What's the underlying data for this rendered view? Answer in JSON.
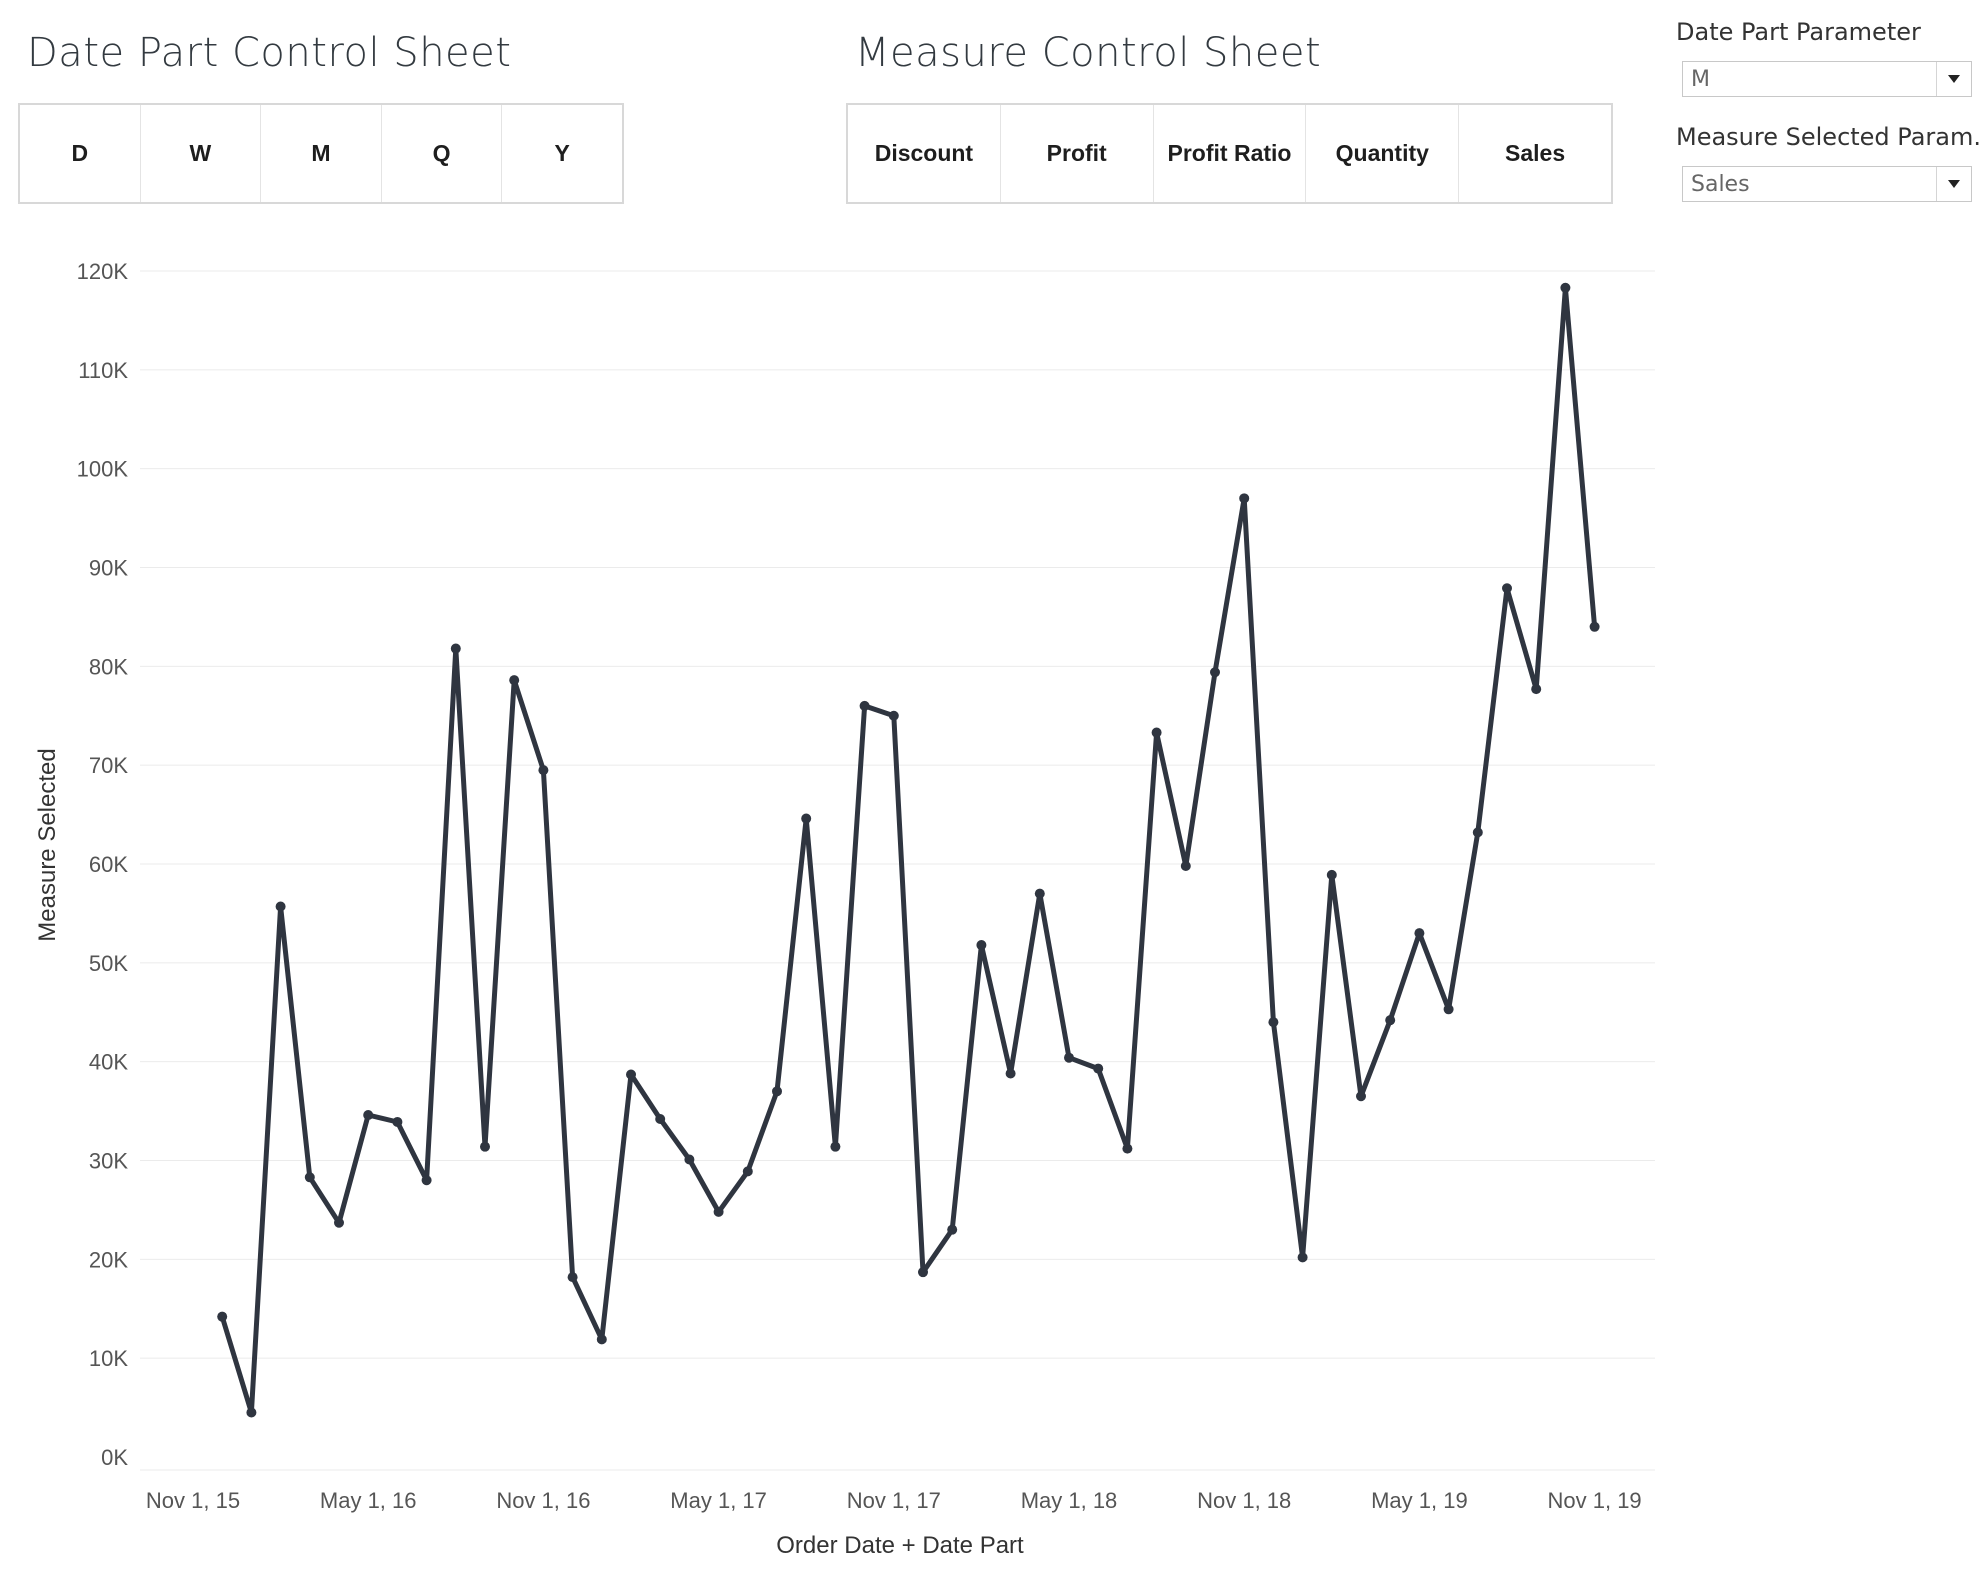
{
  "date_part_sheet": {
    "title": "Date Part Control Sheet",
    "options": [
      "D",
      "W",
      "M",
      "Q",
      "Y"
    ]
  },
  "measure_sheet": {
    "title": "Measure Control Sheet",
    "options": [
      "Discount",
      "Profit",
      "Profit Ratio",
      "Quantity",
      "Sales"
    ]
  },
  "parameters": {
    "date_part": {
      "label": "Date Part Parameter",
      "value": "M"
    },
    "measure": {
      "label": "Measure Selected Param..",
      "value": "Sales"
    }
  },
  "colors": {
    "line": "#2f3540",
    "grid": "#ebebeb",
    "text": "#555555"
  },
  "chart_data": {
    "type": "line",
    "xlabel": "Order Date + Date Part",
    "ylabel": "Measure Selected",
    "ylim": [
      0,
      120000
    ],
    "y_ticks": [
      0,
      10000,
      20000,
      30000,
      40000,
      50000,
      60000,
      70000,
      80000,
      90000,
      100000,
      110000,
      120000
    ],
    "y_tick_labels": [
      "0K",
      "10K",
      "20K",
      "30K",
      "40K",
      "50K",
      "60K",
      "70K",
      "80K",
      "90K",
      "100K",
      "110K",
      "120K"
    ],
    "x_tick_labels": [
      "Nov 1, 15",
      "May 1, 16",
      "Nov 1, 16",
      "May 1, 17",
      "Nov 1, 17",
      "May 1, 18",
      "Nov 1, 18",
      "May 1, 19",
      "Nov 1, 19"
    ],
    "x_tick_months": [
      "2015-11",
      "2016-05",
      "2016-11",
      "2017-05",
      "2017-11",
      "2018-05",
      "2018-11",
      "2019-05",
      "2019-11"
    ],
    "grid": true,
    "x": [
      "2015-12",
      "2016-01",
      "2016-02",
      "2016-03",
      "2016-04",
      "2016-05",
      "2016-06",
      "2016-07",
      "2016-08",
      "2016-09",
      "2016-10",
      "2016-11",
      "2016-12",
      "2017-01",
      "2017-02",
      "2017-03",
      "2017-04",
      "2017-05",
      "2017-06",
      "2017-07",
      "2017-08",
      "2017-09",
      "2017-10",
      "2017-11",
      "2017-12",
      "2018-01",
      "2018-02",
      "2018-03",
      "2018-04",
      "2018-05",
      "2018-06",
      "2018-07",
      "2018-08",
      "2018-09",
      "2018-10",
      "2018-11",
      "2018-12",
      "2019-01",
      "2019-02",
      "2019-03",
      "2019-04",
      "2019-05",
      "2019-06",
      "2019-07",
      "2019-08",
      "2019-09",
      "2019-10",
      "2019-11",
      "2019-12"
    ],
    "values": [
      14200,
      4500,
      55700,
      28300,
      23700,
      34600,
      33900,
      28000,
      81800,
      31400,
      78600,
      69500,
      18200,
      11900,
      38700,
      34200,
      30100,
      24800,
      28900,
      37000,
      64600,
      31400,
      76000,
      75000,
      18700,
      23000,
      51800,
      38800,
      57000,
      40400,
      39300,
      31200,
      73300,
      59800,
      79400,
      97000,
      44000,
      20200,
      58900,
      36500,
      44200,
      53000,
      45300,
      63200,
      87900,
      77700,
      118300,
      84000,
      null
    ]
  }
}
